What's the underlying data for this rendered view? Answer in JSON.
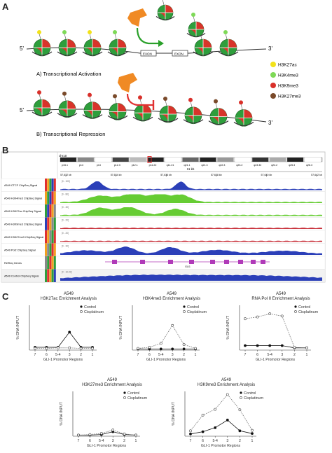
{
  "panel_a": {
    "label": "A",
    "activation_caption": "A) Transcriptional Activation",
    "repression_caption": "B) Transcriptional Repression",
    "end5": "5'",
    "end3": "3'",
    "exon_label": "EXON",
    "legend": [
      {
        "label": "H3K27ac",
        "color": "#f2e21a"
      },
      {
        "label": "H3K4me3",
        "color": "#7ed957"
      },
      {
        "label": "H3K9me3",
        "color": "#d9302a"
      },
      {
        "label": "H3K27me3",
        "color": "#7a4a2a"
      }
    ]
  },
  "panel_b": {
    "label": "B",
    "chromosome": "chr10",
    "bands": [
      "p15.1",
      "p14",
      "p13",
      "p12.3",
      "p12.1",
      "p11.22",
      "q11.21",
      "q21.1",
      "q21.3",
      "q22.3",
      "q23.2",
      "q23.32",
      "q24.2",
      "q25.3",
      "q26.3"
    ],
    "scale_label": "11 kb",
    "coords": [
      "57,632 kb",
      "57,634 kb",
      "57,636 kb",
      "57,638 kb",
      "57,640 kb",
      "57,642 kb"
    ],
    "tracks": [
      {
        "name": "A549 CTCF ChipSeq Signal",
        "range": "[0 - 100]",
        "color": "#2b3fb8"
      },
      {
        "name": "A549 H3K4me3 ChipSeq Signal",
        "range": "[0 - 80]",
        "color": "#66cc33"
      },
      {
        "name": "A549 H3K27ac ChipSeq Signal",
        "range": "[0 - 40]",
        "color": "#66cc33"
      },
      {
        "name": "A549 H3K9me3 ChipSeq Signal",
        "range": "[0 - 20]",
        "color": "#c8303a"
      },
      {
        "name": "A549 H3K27me3 ChipSeq Signal",
        "range": "[0 - 20]",
        "color": "#c8303a"
      },
      {
        "name": "A549 Pol2 ChipSeq Signal",
        "range": "[0 - 30]",
        "color": "#2b3fb8"
      },
      {
        "name": "RefSeq Genes",
        "range": "",
        "color": "#b03ab8"
      },
      {
        "name": "A549 Control ChipSeq Signal",
        "range": "[0 - 10.00]",
        "color": "#2b3fb8"
      }
    ],
    "gene_label": "GLI1"
  },
  "panel_c": {
    "label": "C",
    "legend_control": "Control",
    "legend_cisplatinum": "Cisplatinum"
  },
  "chart_data": [
    {
      "type": "line",
      "title": "A549",
      "subtitle": "H3K27ac Enrichment Analysis",
      "xlabel": "GLI-1 Promotor Regions",
      "ylabel": "% DNA INPUT",
      "categories": [
        "7",
        "6",
        "5-4",
        "3",
        "2",
        "1"
      ],
      "series": [
        {
          "name": "Control",
          "values": [
            0.5,
            0.5,
            0.5,
            3.2,
            0.5,
            0.5
          ]
        },
        {
          "name": "Cisplatinum",
          "values": [
            0.3,
            0.3,
            0.4,
            0.4,
            0.3,
            0.3
          ]
        }
      ],
      "ylim": [
        0,
        8
      ],
      "legend": "top-right"
    },
    {
      "type": "line",
      "title": "A549",
      "subtitle": "H3K4me3 Enrichment Analysis",
      "xlabel": "GLI-1 Promotor Regions",
      "ylabel": "% DNA INPUT",
      "categories": [
        "7",
        "6",
        "5-4",
        "3",
        "2",
        "1"
      ],
      "series": [
        {
          "name": "Control",
          "values": [
            0.2,
            0.2,
            0.2,
            0.2,
            0.2,
            0.2
          ]
        },
        {
          "name": "Cisplatinum",
          "values": [
            0.3,
            0.5,
            1.2,
            4.4,
            1.0,
            0.3
          ]
        }
      ],
      "ylim": [
        0,
        8
      ],
      "legend": "top-right"
    },
    {
      "type": "line",
      "title": "A549",
      "subtitle": "RNA Pol II Enrichment Analysis",
      "xlabel": "GLI-1 Promotor Regions",
      "ylabel": "% DNA INPUT",
      "categories": [
        "7",
        "6",
        "5-4",
        "3",
        "2",
        "1"
      ],
      "series": [
        {
          "name": "Control",
          "values": [
            1.0,
            1.0,
            1.0,
            1.0,
            0.5,
            0.5
          ]
        },
        {
          "name": "Cisplatinum",
          "values": [
            7.0,
            7.4,
            8.1,
            7.6,
            0.6,
            0.5
          ]
        }
      ],
      "ylim": [
        0,
        10
      ],
      "legend": "top-right"
    },
    {
      "type": "line",
      "title": "A549",
      "subtitle": "H3K27me3 Enrichment Analysis",
      "xlabel": "GLI-1 Promotor Regions",
      "ylabel": "% DNA INPUT",
      "categories": [
        "7",
        "6",
        "5-4",
        "3",
        "2",
        "1"
      ],
      "series": [
        {
          "name": "Control",
          "values": [
            0.2,
            0.2,
            0.3,
            0.8,
            0.3,
            0.2
          ]
        },
        {
          "name": "Cisplatinum",
          "values": [
            0.2,
            0.3,
            0.5,
            1.1,
            0.4,
            0.2
          ]
        }
      ],
      "ylim": [
        0,
        8
      ],
      "legend": "top-right"
    },
    {
      "type": "line",
      "title": "A549",
      "subtitle": "H3K9me3 Enrichment Analysis",
      "xlabel": "GLI-1 Promotor Regions",
      "ylabel": "% DNA INPUT",
      "categories": [
        "7",
        "6",
        "5-4",
        "3",
        "2",
        "1"
      ],
      "series": [
        {
          "name": "Control",
          "values": [
            0.5,
            1.0,
            1.9,
            3.6,
            1.2,
            0.6
          ]
        },
        {
          "name": "Cisplatinum",
          "values": [
            1.2,
            4.7,
            6.0,
            9.3,
            5.9,
            1.3
          ]
        }
      ],
      "ylim": [
        0,
        10
      ],
      "legend": "top-right"
    }
  ]
}
